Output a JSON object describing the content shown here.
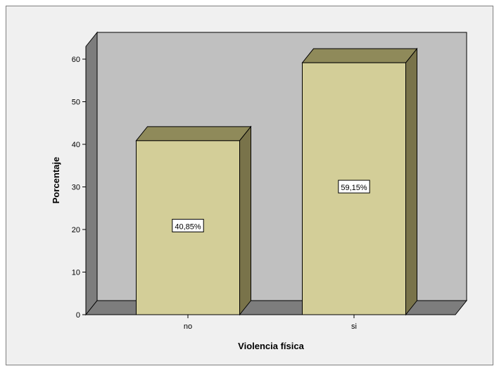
{
  "chart_data": {
    "type": "bar",
    "categories": [
      "no",
      "si"
    ],
    "values": [
      40.85,
      59.15
    ],
    "data_labels": [
      "40,85%",
      "59,15%"
    ],
    "xlabel": "Violencia física",
    "ylabel": "Porcentaje",
    "ylim": [
      0,
      60
    ],
    "yticks": [
      "0",
      "10",
      "20",
      "30",
      "40",
      "50",
      "60"
    ],
    "grid": false,
    "style": "3d",
    "colors": {
      "bar_front": "#d3ce98",
      "bar_top": "#8f8a5a",
      "bar_side": "#79734a",
      "plot_back": "#c0c0c0",
      "plot_floor": "#7d7d7d",
      "plot_left_wall": "#7d7d7d",
      "frame_background": "#f0f0f0"
    }
  }
}
